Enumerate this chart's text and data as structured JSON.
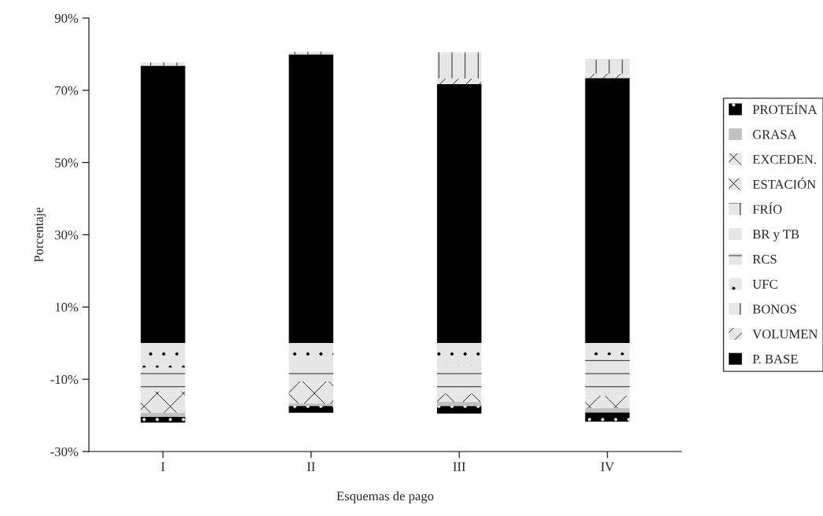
{
  "chart_data": {
    "type": "bar",
    "stacked": true,
    "xlabel": "Esquemas de pago",
    "ylabel": "Porcentaje",
    "categories": [
      "I",
      "II",
      "III",
      "IV"
    ],
    "ylim": [
      -30,
      90
    ],
    "yticks": [
      {
        "value": -30,
        "label": "-30%"
      },
      {
        "value": -10,
        "label": "-10%"
      },
      {
        "value": 10,
        "label": "10%"
      },
      {
        "value": 30,
        "label": "30%"
      },
      {
        "value": 50,
        "label": "50%"
      },
      {
        "value": 70,
        "label": "70%"
      },
      {
        "value": 90,
        "label": "90%"
      }
    ],
    "grid": false,
    "legend": "right",
    "series": [
      {
        "name": "P. BASE",
        "color": "#000000",
        "values": [
          76.8,
          79.9,
          71.7,
          73.4
        ]
      },
      {
        "name": "VOLUMEN",
        "color": "#e6e6e6",
        "values": [
          null,
          null,
          1.6,
          1.2
        ]
      },
      {
        "name": "BONOS",
        "color": "#e6e6e6",
        "values": [
          null,
          null,
          6.8,
          3.0
        ]
      },
      {
        "name": "UFC",
        "color": "#e6e6e6",
        "values": [
          -6.8,
          -5.4,
          -6.2,
          -3.4
        ]
      },
      {
        "name": "RCS",
        "color": "#e6e6e6",
        "values": [
          -6.6,
          -5.2,
          -6.7,
          -11.2
        ]
      },
      {
        "name": "BR y TB",
        "color": "#e6e6e6",
        "values": [
          null,
          null,
          -1.1,
          null
        ]
      },
      {
        "name": "FRÍO",
        "color": "#e6e6e6",
        "values": [
          0.9,
          0.8,
          0.4,
          0.9
        ]
      },
      {
        "name": "ESTACIÓN",
        "color": "#e6e6e6",
        "values": [
          -1.0,
          -0.7,
          null,
          -0.9
        ]
      },
      {
        "name": "EXCEDEN.",
        "color": "#e6e6e6",
        "values": [
          -4.9,
          -5.4,
          -2.3,
          -2.5
        ]
      },
      {
        "name": "GRASA",
        "color": "#c0c0c0",
        "values": [
          -1.1,
          -0.7,
          -1.1,
          -1.2
        ]
      },
      {
        "name": "PROTEÍNA",
        "color": "#000000",
        "values": [
          -1.6,
          -1.9,
          -2.1,
          -2.5
        ]
      }
    ]
  }
}
